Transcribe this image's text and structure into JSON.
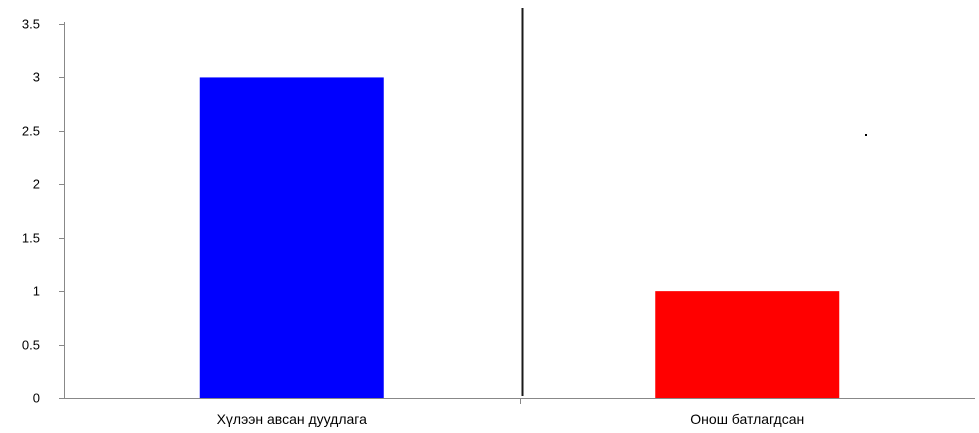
{
  "chart_data": {
    "type": "bar",
    "categories": [
      "Хүлээн авсан дуудлага",
      "Онош батлагдсан"
    ],
    "values": [
      3,
      1
    ],
    "bar_colors": [
      "#0000ff",
      "#ff0000"
    ],
    "ylim": [
      0,
      3.5
    ],
    "yticks": [
      0,
      0.5,
      1,
      1.5,
      2,
      2.5,
      3,
      3.5
    ],
    "ytick_labels": [
      "0",
      "0.5",
      "1",
      "1.5",
      "2",
      "2.5",
      "3",
      "3.5"
    ],
    "title": "",
    "xlabel": "",
    "ylabel": "",
    "grid": false,
    "legend": "none"
  }
}
